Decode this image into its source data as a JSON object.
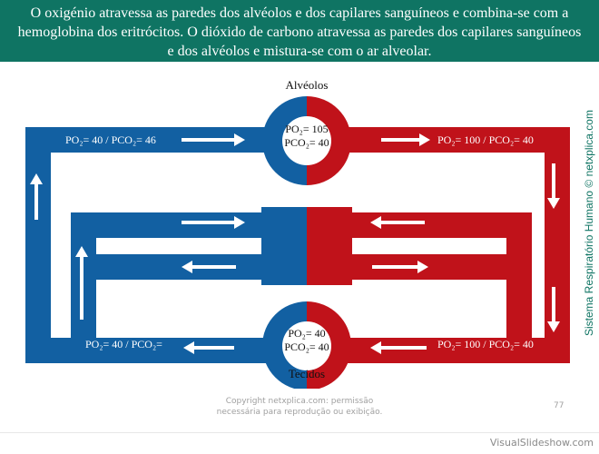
{
  "header": {
    "line1": "O oxigénio atravessa as paredes dos alvéolos e dos capilares sanguíneos e combina-se com a",
    "line2": "hemoglobina dos eritrócitos. O dióxido de carbono atravessa as paredes dos capilares sanguíneos",
    "line3": "e dos alvéolos e mistura-se com o ar alveolar."
  },
  "diagram": {
    "alveolos_title": "Alvéolos",
    "tecidos_title": "Tecidos",
    "alveolos_po2": "PO₂= 105",
    "alveolos_pco2": "PCO₂= 40",
    "tecidos_po2": "PO₂= 40",
    "tecidos_pco2": "PCO₂= 40",
    "top_left_label": "PO₂= 40 / PCO₂= 46",
    "top_right_label": "PO₂= 100 / PCO₂= 40",
    "bottom_left_label": "PO₂= 40 / PCO₂=",
    "bottom_right_label": "PO₂= 100 / PCO₂= 40",
    "colors": {
      "venous": "#1260a2",
      "arterial": "#c0121a",
      "arrow": "#ffffff"
    }
  },
  "side_text": "Sistema Respiratório Humano © netxplica.com",
  "copyright": {
    "line1": "Copyright netxplica.com: permissão",
    "line2": "necessária para reprodução ou exibição."
  },
  "page_number": "77",
  "watermark": "VisualSlideshow.com"
}
